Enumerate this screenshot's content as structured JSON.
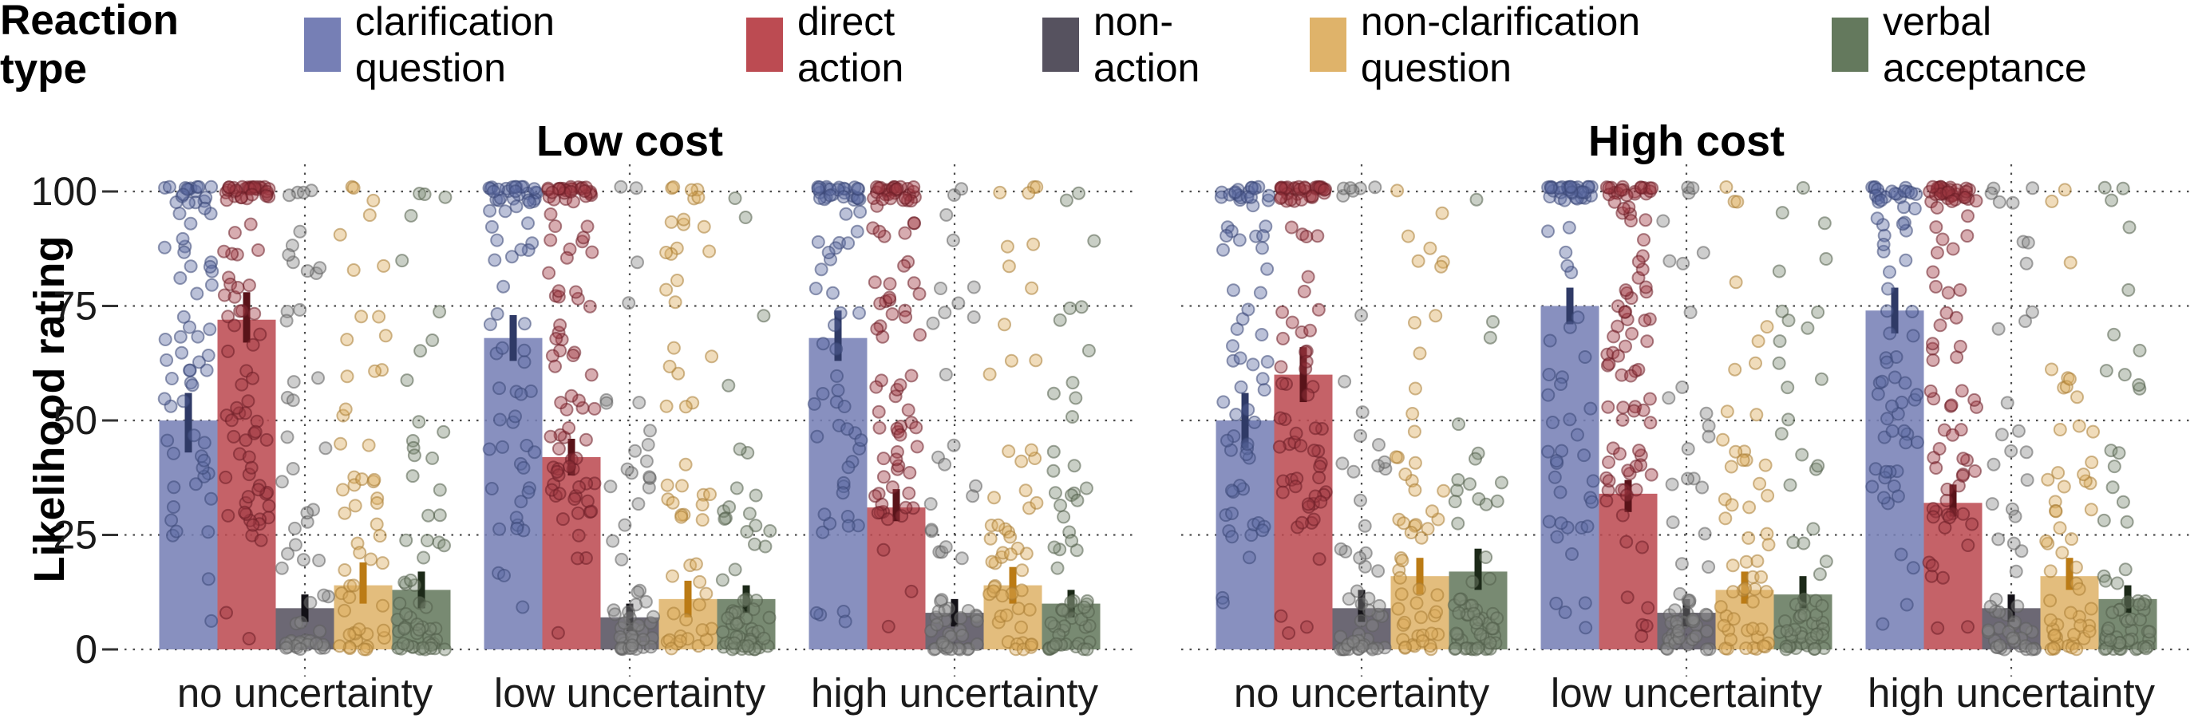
{
  "legend": {
    "title": "Reaction type",
    "items": [
      {
        "label": "clarification question",
        "color": "#767FB5"
      },
      {
        "label": "direct action",
        "color": "#BC4B52"
      },
      {
        "label": "non-action",
        "color": "#56525F"
      },
      {
        "label": "non-clarification question",
        "color": "#DFB36A"
      },
      {
        "label": "verbal acceptance",
        "color": "#64795D"
      }
    ]
  },
  "y_axis": {
    "title": "Likelihood rating",
    "ticks": [
      0,
      25,
      50,
      75,
      100
    ]
  },
  "x_axis": {
    "categories": [
      "no uncertainty",
      "low uncertainty",
      "high uncertainty"
    ]
  },
  "facets": [
    {
      "title": "Low cost"
    },
    {
      "title": "High cost"
    }
  ],
  "chart_data": {
    "type": "bar",
    "title": "",
    "xlabel": "",
    "ylabel": "Likelihood rating",
    "ylim": [
      0,
      100
    ],
    "yticks": [
      0,
      25,
      50,
      75,
      100
    ],
    "grid": "dotted",
    "legend_position": "top",
    "overlay": "jittered semi-transparent points of individual likelihood ratings",
    "error_bars": "95% CI shown as thick dark vertical segments at bar tops",
    "facets": [
      {
        "label": "Low cost",
        "categories": [
          "no uncertainty",
          "low uncertainty",
          "high uncertainty"
        ],
        "series": [
          {
            "name": "clarification question",
            "values": [
              50,
              68,
              68
            ],
            "ci_low": [
              43,
              63,
              63
            ],
            "ci_high": [
              56,
              73,
              74
            ]
          },
          {
            "name": "direct action",
            "values": [
              72,
              42,
              31
            ],
            "ci_low": [
              67,
              38,
              28
            ],
            "ci_high": [
              78,
              46,
              35
            ]
          },
          {
            "name": "non-action",
            "values": [
              9,
              7,
              8
            ],
            "ci_low": [
              6,
              4,
              5
            ],
            "ci_high": [
              12,
              10,
              11
            ]
          },
          {
            "name": "non-clarification question",
            "values": [
              14,
              11,
              14
            ],
            "ci_low": [
              10,
              7,
              10
            ],
            "ci_high": [
              19,
              15,
              18
            ]
          },
          {
            "name": "verbal acceptance",
            "values": [
              13,
              11,
              10
            ],
            "ci_low": [
              9,
              8,
              7
            ],
            "ci_high": [
              17,
              14,
              13
            ]
          }
        ]
      },
      {
        "label": "High cost",
        "categories": [
          "no uncertainty",
          "low uncertainty",
          "high uncertainty"
        ],
        "series": [
          {
            "name": "clarification question",
            "values": [
              50,
              75,
              74
            ],
            "ci_low": [
              44,
              71,
              69
            ],
            "ci_high": [
              56,
              79,
              79
            ]
          },
          {
            "name": "direct action",
            "values": [
              60,
              34,
              32
            ],
            "ci_low": [
              54,
              30,
              29
            ],
            "ci_high": [
              66,
              37,
              36
            ]
          },
          {
            "name": "non-action",
            "values": [
              9,
              8,
              9
            ],
            "ci_low": [
              6,
              5,
              6
            ],
            "ci_high": [
              13,
              11,
              12
            ]
          },
          {
            "name": "non-clarification question",
            "values": [
              16,
              13,
              16
            ],
            "ci_low": [
              12,
              10,
              13
            ],
            "ci_high": [
              20,
              17,
              20
            ]
          },
          {
            "name": "verbal acceptance",
            "values": [
              17,
              12,
              11
            ],
            "ci_low": [
              13,
              9,
              8
            ],
            "ci_high": [
              22,
              16,
              14
            ]
          }
        ]
      }
    ]
  },
  "style": {
    "background": "#FFFFFF",
    "grid_color": "#4D4D4D",
    "text_color": "#1A1A1A",
    "bar_opacity": 0.87,
    "series": [
      {
        "name": "clarification question",
        "bar": "#767FB5",
        "error": "#2F3A66",
        "point": "#5E6CA3",
        "point_stroke": "#3A4776"
      },
      {
        "name": "direct action",
        "bar": "#BC4B52",
        "error": "#591319",
        "point": "#A03A43",
        "point_stroke": "#6B1E26"
      },
      {
        "name": "non-action",
        "bar": "#56525F",
        "error": "#121016",
        "point": "#8B8B8B",
        "point_stroke": "#5E5E5E"
      },
      {
        "name": "non-clarification question",
        "bar": "#DFB36A",
        "error": "#BB7B15",
        "point": "#DCAC5E",
        "point_stroke": "#A97E35"
      },
      {
        "name": "verbal acceptance",
        "bar": "#64795D",
        "error": "#1C2918",
        "point": "#7E8C76",
        "point_stroke": "#525F4B"
      }
    ]
  },
  "jitter": {
    "seed": 7,
    "point_radius": 7.5,
    "point_opacity": 0.42,
    "profiles": [
      {
        "n": 70,
        "bands": [
          {
            "f": 0.34,
            "lo": 97.5,
            "hi": 101,
            "mode": "top"
          },
          {
            "f": 0.4,
            "lo": 46,
            "hi": 97
          },
          {
            "f": 0.2,
            "lo": 24,
            "hi": 46
          },
          {
            "f": 0.06,
            "lo": 1,
            "hi": 24
          }
        ]
      },
      {
        "n": 90,
        "bands": [
          {
            "f": 0.32,
            "lo": 97.5,
            "hi": 101,
            "mode": "top"
          },
          {
            "f": 0.38,
            "lo": 44,
            "hi": 97
          },
          {
            "f": 0.24,
            "lo": 27,
            "hi": 44
          },
          {
            "f": 0.06,
            "lo": 1,
            "hi": 27
          }
        ]
      },
      {
        "n": 55,
        "bands": [
          {
            "f": 0.05,
            "lo": 97.5,
            "hi": 101,
            "mode": "top"
          },
          {
            "f": 0.17,
            "lo": 45,
            "hi": 97
          },
          {
            "f": 0.2,
            "lo": 17,
            "hi": 45
          },
          {
            "f": 0.58,
            "lo": 0,
            "hi": 13,
            "mode": "bottom"
          }
        ]
      },
      {
        "n": 55,
        "bands": [
          {
            "f": 0.07,
            "lo": 97.5,
            "hi": 101,
            "mode": "top"
          },
          {
            "f": 0.23,
            "lo": 45,
            "hi": 97
          },
          {
            "f": 0.3,
            "lo": 15,
            "hi": 45
          },
          {
            "f": 0.4,
            "lo": 0,
            "hi": 15,
            "mode": "bottom"
          }
        ]
      },
      {
        "n": 60,
        "bands": [
          {
            "f": 0.04,
            "lo": 97.5,
            "hi": 101,
            "mode": "top"
          },
          {
            "f": 0.14,
            "lo": 45,
            "hi": 97
          },
          {
            "f": 0.2,
            "lo": 13,
            "hi": 45
          },
          {
            "f": 0.62,
            "lo": 0,
            "hi": 11,
            "mode": "bottom"
          }
        ]
      }
    ]
  }
}
